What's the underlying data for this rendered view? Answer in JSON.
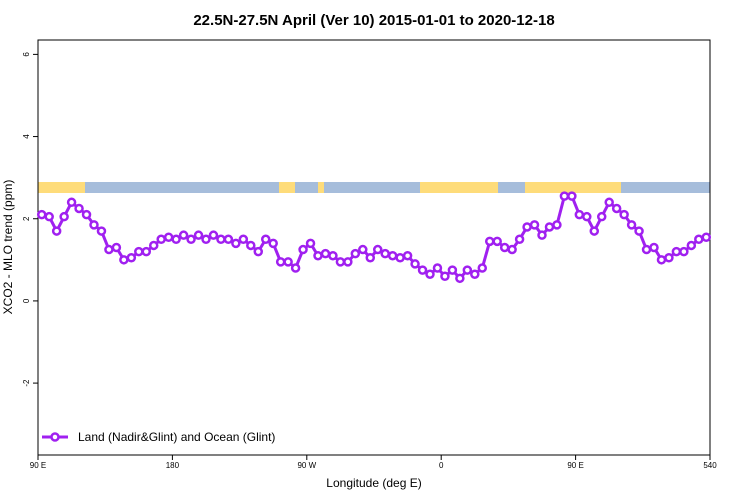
{
  "chart_data": {
    "type": "line",
    "title": "22.5N-27.5N April (Ver 10)   2015-01-01 to 2020-12-18",
    "x_label": "Longitude (deg E)",
    "y_label": "XCO2 - MLO trend (ppm)",
    "x": [
      92.5,
      97.5,
      102.5,
      107.5,
      112.5,
      117.5,
      122.5,
      127.5,
      132.5,
      137.5,
      142.5,
      147.5,
      152.5,
      157.5,
      162.5,
      167.5,
      172.5,
      177.5,
      182.5,
      187.5,
      192.5,
      197.5,
      202.5,
      207.5,
      212.5,
      217.5,
      222.5,
      227.5,
      232.5,
      237.5,
      242.5,
      247.5,
      252.5,
      257.5,
      262.5,
      267.5,
      272.5,
      277.5,
      282.5,
      287.5,
      292.5,
      297.5,
      302.5,
      307.5,
      312.5,
      317.5,
      322.5,
      327.5,
      332.5,
      337.5,
      342.5,
      347.5,
      352.5,
      357.5,
      362.5,
      367.5,
      372.5,
      377.5,
      382.5,
      387.5,
      392.5,
      397.5,
      402.5,
      407.5,
      412.5,
      417.5,
      422.5,
      427.5,
      432.5,
      437.5,
      442.5,
      447.5,
      452.5,
      457.5,
      462.5,
      467.5,
      472.5,
      477.5,
      482.5,
      487.5,
      492.5,
      497.5,
      502.5,
      507.5,
      512.5,
      517.5,
      522.5,
      527.5,
      532.5,
      537.5
    ],
    "series": [
      {
        "name": "Land (Nadir&Glint) and Ocean (Glint)",
        "color": "#a020f0",
        "values": [
          2.1,
          2.05,
          1.7,
          2.05,
          2.4,
          2.25,
          2.1,
          1.85,
          1.7,
          1.25,
          1.3,
          1.0,
          1.05,
          1.2,
          1.2,
          1.35,
          1.5,
          1.55,
          1.5,
          1.6,
          1.5,
          1.6,
          1.5,
          1.6,
          1.5,
          1.5,
          1.4,
          1.5,
          1.35,
          1.2,
          1.5,
          1.4,
          0.95,
          0.95,
          0.8,
          1.25,
          1.4,
          1.1,
          1.15,
          1.1,
          0.95,
          0.95,
          1.15,
          1.25,
          1.05,
          1.25,
          1.15,
          1.1,
          1.05,
          1.1,
          0.9,
          0.75,
          0.65,
          0.8,
          0.6,
          0.75,
          0.55,
          0.75,
          0.65,
          0.8,
          1.45,
          1.45,
          1.3,
          1.25,
          1.5,
          1.8,
          1.85,
          1.6,
          1.8,
          1.85,
          2.55,
          2.55,
          2.1,
          2.05,
          1.7,
          2.05,
          2.4,
          2.25,
          2.1,
          1.85,
          1.7,
          1.25,
          1.3,
          1.0,
          1.05,
          1.2,
          1.2,
          1.35,
          1.5,
          1.55
        ]
      }
    ],
    "xlim": [
      90,
      540
    ],
    "xticks": [
      {
        "value": 90,
        "label": "90 E"
      },
      180,
      {
        "value": 270,
        "label": "90 W"
      },
      {
        "value": 360,
        "label": "0"
      },
      {
        "value": 450,
        "label": "90 E"
      },
      540
    ],
    "ylim": [
      -3.75,
      6.35
    ],
    "yticks": [
      -2,
      0,
      2,
      4,
      6
    ],
    "legend": "bottom-left"
  }
}
